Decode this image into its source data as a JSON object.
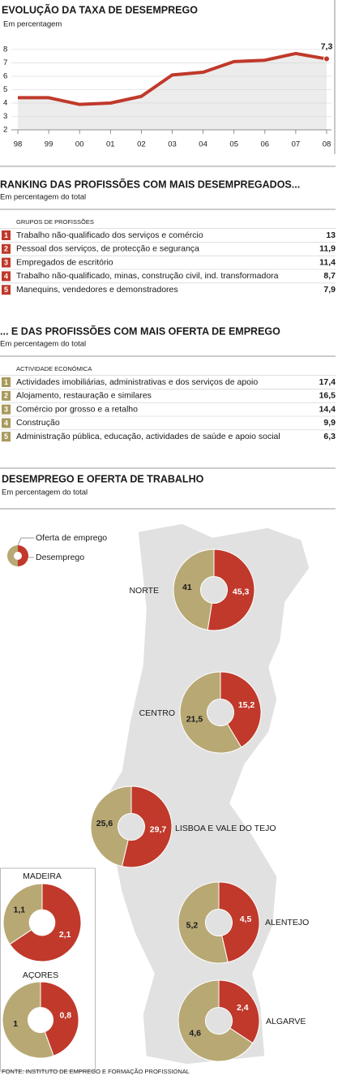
{
  "chart_data": [
    {
      "type": "line",
      "title": "EVOLUÇÃO DA TAXA DE DESEMPREGO",
      "subtitle": "Em percentagem",
      "categories": [
        "98",
        "99",
        "00",
        "01",
        "02",
        "03",
        "04",
        "05",
        "06",
        "07",
        "08"
      ],
      "values": [
        4.4,
        4.4,
        3.9,
        4.0,
        4.5,
        6.1,
        6.3,
        7.1,
        7.2,
        7.7,
        7.3
      ],
      "value_labels": [
        null,
        null,
        null,
        null,
        null,
        null,
        null,
        null,
        null,
        null,
        "7,3"
      ],
      "color": "#c0392b",
      "ylim": [
        2,
        8
      ],
      "yticks": [
        2,
        3,
        4,
        5,
        6,
        7,
        8
      ],
      "grid": true
    },
    {
      "type": "donut",
      "title": "DESEMPREGO E OFERTA DE TRABALHO",
      "subtitle": "Em percentagem do total",
      "categories": [
        "NORTE",
        "CENTRO",
        "LISBOA E VALE DO TEJO",
        "ALENTEJO",
        "ALGARVE",
        "MADEIRA",
        "AÇORES"
      ],
      "series": [
        {
          "name": "Oferta de emprego",
          "color": "#b8a874",
          "values": [
            41,
            21.5,
            25.6,
            5.2,
            4.6,
            1.1,
            1
          ],
          "value_labels": [
            "41",
            "21,5",
            "25,6",
            "5,2",
            "4,6",
            "1,1",
            "1"
          ]
        },
        {
          "name": "Desemprego",
          "color": "#c0392b",
          "values": [
            45.3,
            15.2,
            29.7,
            4.5,
            2.4,
            2.1,
            0.8
          ],
          "value_labels": [
            "45,3",
            "15,2",
            "29,7",
            "4,5",
            "2,4",
            "2,1",
            "0,8"
          ]
        }
      ]
    }
  ],
  "rankings": [
    {
      "title": "RANKING DAS PROFISSÕES COM MAIS  DESEMPREGADOS...",
      "subtitle": "Em percentagem do total",
      "header": "GRUPOS DE PROFISSÕES",
      "color": "#c0392b",
      "rows": [
        {
          "number": "1",
          "label": "Trabalho não-qualificado dos serviços e comércio",
          "value": "13"
        },
        {
          "number": "2",
          "label": "Pessoal dos serviços, de protecção e segurança",
          "value": "11,9"
        },
        {
          "number": "3",
          "label": "Empregados de escritório",
          "value": "11,4"
        },
        {
          "number": "4",
          "label": "Trabalho não-qualificado, minas, construção civil, ind. transformadora",
          "value": "8,7"
        },
        {
          "number": "5",
          "label": "Manequins, vendedores e demonstradores",
          "value": "7,9"
        }
      ]
    },
    {
      "title": "... E DAS PROFISSÕES COM MAIS OFERTA DE EMPREGO",
      "subtitle": "Em percentagem do total",
      "header": "ACTIVIDADE ECONÓMICA",
      "color": "#a89a5c",
      "rows": [
        {
          "number": "1",
          "label": "Actividades imobiliárias, administrativas e dos serviços de apoio",
          "value": "17,4"
        },
        {
          "number": "2",
          "label": "Alojamento, restauração e similares",
          "value": "16,5"
        },
        {
          "number": "3",
          "label": "Comércio por grosso e a retalho",
          "value": "14,4"
        },
        {
          "number": "4",
          "label": "Construção",
          "value": "9,9"
        },
        {
          "number": "5",
          "label": "Administração pública, educação, actividades de saúde e apoio social",
          "value": "6,3"
        }
      ]
    }
  ],
  "source": "FONTE: INSTITUTO DE EMPREGO E FORMAÇÃO PROFISSIONAL"
}
